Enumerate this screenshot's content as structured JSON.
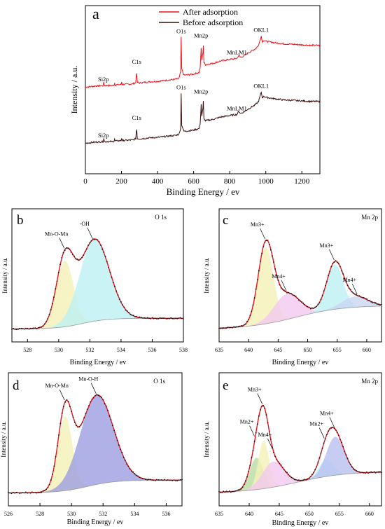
{
  "chart_data": [
    {
      "type": "line",
      "panel_label": "a",
      "xlabel": "Binding Energy / ev",
      "ylabel": "Intensity / a.u.",
      "xlim": [
        0,
        1300
      ],
      "xticks": [
        "0",
        "200",
        "400",
        "600",
        "800",
        "1000",
        "1200"
      ],
      "xtick_values": [
        0,
        200,
        400,
        600,
        800,
        1000,
        1200
      ],
      "legend_position": "top-center",
      "series": [
        {
          "name": "After adsorption",
          "color": "#e8141b",
          "offset": 0.55,
          "x": [
            0,
            60,
            100,
            102,
            104,
            150,
            160,
            162,
            164,
            200,
            202,
            204,
            260,
            270,
            280,
            284,
            286,
            288,
            300,
            350,
            400,
            450,
            500,
            520,
            528,
            531,
            534,
            545,
            560,
            600,
            630,
            638,
            641,
            644,
            652,
            654,
            657,
            665,
            700,
            750,
            800,
            840,
            850,
            860,
            880,
            900,
            940,
            960,
            975,
            980,
            990,
            1000,
            1050,
            1100,
            1150,
            1200,
            1250,
            1300
          ],
          "y": [
            0.05,
            0.07,
            0.08,
            0.15,
            0.08,
            0.08,
            0.09,
            0.13,
            0.09,
            0.1,
            0.2,
            0.1,
            0.11,
            0.12,
            0.14,
            0.42,
            0.18,
            0.14,
            0.13,
            0.15,
            0.16,
            0.18,
            0.2,
            0.22,
            0.35,
            1.0,
            0.4,
            0.28,
            0.28,
            0.3,
            0.33,
            0.45,
            0.92,
            0.55,
            0.72,
            0.85,
            0.52,
            0.48,
            0.5,
            0.55,
            0.58,
            0.6,
            0.66,
            0.62,
            0.65,
            0.7,
            0.78,
            0.85,
            1.03,
            0.92,
            0.95,
            0.93,
            0.9,
            0.88,
            0.87,
            0.86,
            0.85,
            0.85
          ]
        },
        {
          "name": "Before adsorption",
          "color": "#3a0b0b",
          "offset": 0.0,
          "x": [
            0,
            60,
            100,
            102,
            104,
            150,
            160,
            162,
            164,
            200,
            202,
            204,
            260,
            270,
            280,
            284,
            286,
            288,
            300,
            350,
            400,
            450,
            500,
            520,
            528,
            531,
            534,
            545,
            560,
            600,
            630,
            638,
            641,
            644,
            652,
            654,
            657,
            665,
            700,
            750,
            800,
            840,
            850,
            860,
            880,
            900,
            940,
            960,
            975,
            980,
            990,
            1000,
            1050,
            1100,
            1150,
            1200,
            1250,
            1300
          ],
          "y": [
            0.05,
            0.07,
            0.08,
            0.15,
            0.08,
            0.08,
            0.09,
            0.13,
            0.09,
            0.1,
            0.2,
            0.1,
            0.11,
            0.12,
            0.14,
            0.42,
            0.18,
            0.14,
            0.13,
            0.15,
            0.16,
            0.18,
            0.2,
            0.22,
            0.35,
            1.0,
            0.4,
            0.28,
            0.28,
            0.3,
            0.33,
            0.45,
            0.92,
            0.55,
            0.72,
            0.85,
            0.52,
            0.48,
            0.5,
            0.55,
            0.58,
            0.6,
            0.66,
            0.62,
            0.65,
            0.7,
            0.78,
            0.85,
            1.03,
            0.92,
            0.95,
            0.93,
            0.9,
            0.88,
            0.87,
            0.86,
            0.85,
            0.85
          ]
        }
      ],
      "annotations": [
        {
          "text": "Si2p",
          "x": 100,
          "series": 0
        },
        {
          "text": "C1s",
          "x": 284,
          "series": 0
        },
        {
          "text": "O1s",
          "x": 531,
          "series": 0
        },
        {
          "text": "Mn2p",
          "x": 641,
          "series": 0
        },
        {
          "text": "MnLM1",
          "x": 840,
          "series": 0
        },
        {
          "text": "OKL1",
          "x": 975,
          "series": 0
        },
        {
          "text": "Si2p",
          "x": 100,
          "series": 1
        },
        {
          "text": "C1s",
          "x": 284,
          "series": 1
        },
        {
          "text": "O1s",
          "x": 531,
          "series": 1
        },
        {
          "text": "Mn2p",
          "x": 641,
          "series": 1
        },
        {
          "text": "MnLM1",
          "x": 840,
          "series": 1
        },
        {
          "text": "OKL1",
          "x": 975,
          "series": 1
        }
      ]
    },
    {
      "type": "line",
      "panel_label": "b",
      "title": "O 1s",
      "xlabel": "Binding Energy / ev",
      "ylabel": "Intensity / a.u.",
      "xlim": [
        527,
        538
      ],
      "xticks": [
        "528",
        "530",
        "532",
        "534",
        "536",
        "538"
      ],
      "xtick_values": [
        528,
        530,
        532,
        534,
        536,
        538
      ],
      "background": {
        "a": 0.03,
        "b": 0.1,
        "center": 531.5,
        "width": 0.8
      },
      "components": [
        {
          "name": "Mn-O-Mn",
          "center": 530.4,
          "sigma": 0.55,
          "amp": 0.62,
          "color": "#f4f0b5"
        },
        {
          "name": "-OH",
          "center": 532.3,
          "sigma": 0.95,
          "amp": 0.77,
          "color": "#bdf0f4"
        }
      ],
      "annotations": [
        {
          "text": "Mn-O-Mn",
          "x": 530.4
        },
        {
          "text": "-OH",
          "x": 532.2
        }
      ]
    },
    {
      "type": "line",
      "panel_label": "c",
      "title": "Mn 2p",
      "xlabel": "Binding Energy / ev",
      "ylabel": "Intensity / a.u.",
      "xlim": [
        635,
        662.5
      ],
      "xticks": [
        "635",
        "640",
        "645",
        "650",
        "655",
        "660"
      ],
      "xtick_values": [
        635,
        640,
        645,
        650,
        655,
        660
      ],
      "background": {
        "a": 0.03,
        "b": 0.22,
        "center": 648,
        "width": 4
      },
      "components": [
        {
          "name": "Mn3+",
          "center": 642.9,
          "sigma": 1.3,
          "amp": 0.72,
          "color": "#f4f0b5"
        },
        {
          "name": "Mn4+",
          "center": 646.5,
          "sigma": 2.2,
          "amp": 0.24,
          "color": "#f3c8ef"
        },
        {
          "name": "Mn3+",
          "center": 654.6,
          "sigma": 1.4,
          "amp": 0.42,
          "color": "#bdf0f4"
        },
        {
          "name": "Mn4+",
          "center": 658.0,
          "sigma": 2.2,
          "amp": 0.1,
          "color": "#c9d6f2"
        }
      ],
      "annotations": [
        {
          "text": "Mn3+",
          "x": 642.9
        },
        {
          "text": "Mn4+",
          "x": 646.5
        },
        {
          "text": "Mn3+",
          "x": 654.6
        },
        {
          "text": "Mn4+",
          "x": 658.5
        }
      ]
    },
    {
      "type": "line",
      "panel_label": "d",
      "title": "O 1s",
      "xlabel": "Binding Energy / ev",
      "ylabel": "Intensity / a.u.",
      "xlim": [
        526,
        537
      ],
      "xticks": [
        "526",
        "528",
        "530",
        "532",
        "534",
        "536"
      ],
      "xtick_values": [
        526,
        528,
        530,
        532,
        534,
        536
      ],
      "background": {
        "a": 0.03,
        "b": 0.12,
        "center": 531,
        "width": 0.9
      },
      "components": [
        {
          "name": "Mn-O-Mn",
          "center": 529.6,
          "sigma": 0.45,
          "amp": 0.7,
          "color": "#f4f0b5"
        },
        {
          "name": "Mn-O-H",
          "center": 531.6,
          "sigma": 1.05,
          "amp": 0.84,
          "color": "#9c9ee0"
        }
      ],
      "annotations": [
        {
          "text": "Mn-O-Mn",
          "x": 529.6
        },
        {
          "text": "Mn-O-H",
          "x": 531.6
        }
      ]
    },
    {
      "type": "line",
      "panel_label": "e",
      "title": "Mn 2p",
      "xlabel": "Binding Energy / ev",
      "ylabel": "Intensity / a.u.",
      "xlim": [
        635,
        662
      ],
      "xticks": [
        "635",
        "640",
        "645",
        "650",
        "655",
        "660"
      ],
      "xtick_values": [
        635,
        640,
        645,
        650,
        655,
        660
      ],
      "background": {
        "a": 0.03,
        "b": 0.2,
        "center": 648,
        "width": 4
      },
      "components": [
        {
          "name": "Mn2+",
          "center": 641.2,
          "sigma": 1.1,
          "amp": 0.3,
          "color": "#b9dca2"
        },
        {
          "name": "Mn3+",
          "center": 642.4,
          "sigma": 0.9,
          "amp": 0.45,
          "color": "#f4f0b5"
        },
        {
          "name": "Mn4+",
          "center": 644.0,
          "sigma": 1.8,
          "amp": 0.24,
          "color": "#f3c8ef"
        },
        {
          "name": "Mn2+",
          "center": 652.8,
          "sigma": 1.2,
          "amp": 0.16,
          "color": "#bdf0f4"
        },
        {
          "name": "Mn4+",
          "center": 654.3,
          "sigma": 1.5,
          "amp": 0.36,
          "color": "#b9bff0"
        }
      ],
      "annotations": [
        {
          "text": "Mn2+",
          "x": 641.0
        },
        {
          "text": "Mn3+",
          "x": 642.3
        },
        {
          "text": "Mn4+",
          "x": 644.0
        },
        {
          "text": "Mn2+",
          "x": 652.6
        },
        {
          "text": "Mn4+",
          "x": 654.3
        }
      ]
    }
  ]
}
